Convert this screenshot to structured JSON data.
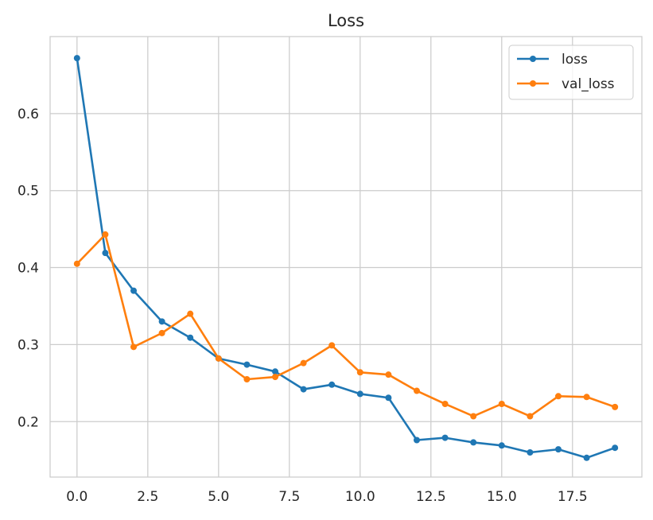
{
  "chart_data": {
    "type": "line",
    "title": "Loss",
    "xlabel": "",
    "ylabel": "",
    "xlim": [
      -0.95,
      19.95
    ],
    "ylim": [
      0.128,
      0.7
    ],
    "x_ticks": [
      0.0,
      2.5,
      5.0,
      7.5,
      10.0,
      12.5,
      15.0,
      17.5
    ],
    "x_tick_labels": [
      "0.0",
      "2.5",
      "5.0",
      "7.5",
      "10.0",
      "12.5",
      "15.0",
      "17.5"
    ],
    "y_ticks": [
      0.2,
      0.3,
      0.4,
      0.5,
      0.6
    ],
    "y_tick_labels": [
      "0.2",
      "0.3",
      "0.4",
      "0.5",
      "0.6"
    ],
    "grid": true,
    "legend_position": "top-right",
    "x": [
      0,
      1,
      2,
      3,
      4,
      5,
      6,
      7,
      8,
      9,
      10,
      11,
      12,
      13,
      14,
      15,
      16,
      17,
      18,
      19
    ],
    "series": [
      {
        "name": "loss",
        "color": "#1f77b4",
        "values": [
          0.672,
          0.419,
          0.37,
          0.33,
          0.309,
          0.282,
          0.274,
          0.265,
          0.242,
          0.248,
          0.236,
          0.231,
          0.176,
          0.179,
          0.173,
          0.169,
          0.16,
          0.164,
          0.153,
          0.166
        ]
      },
      {
        "name": "val_loss",
        "color": "#ff7f0e",
        "values": [
          0.405,
          0.443,
          0.297,
          0.315,
          0.34,
          0.282,
          0.255,
          0.258,
          0.276,
          0.299,
          0.264,
          0.261,
          0.24,
          0.223,
          0.207,
          0.223,
          0.207,
          0.233,
          0.232,
          0.219
        ]
      }
    ]
  }
}
